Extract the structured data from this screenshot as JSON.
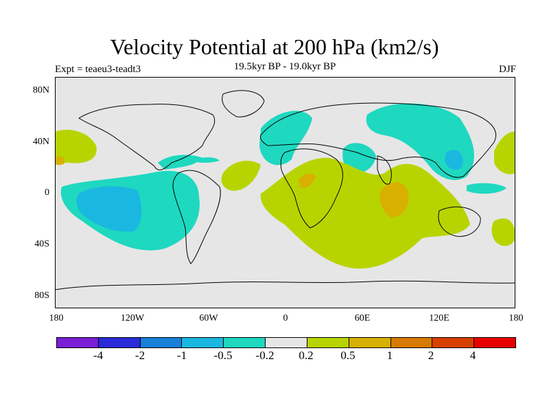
{
  "title": "Velocity Potential at 200 hPa (km2/s)",
  "subtitle": "19.5kyr BP - 19.0kyr BP",
  "experiment": "Expt = teaeu3-teadt3",
  "season": "DJF",
  "lat_labels": [
    "80N",
    "40N",
    "0",
    "40S",
    "80S"
  ],
  "lon_labels": [
    "180",
    "120W",
    "60W",
    "0",
    "60E",
    "120E",
    "180"
  ],
  "colorbar": {
    "colors": [
      "#7a1fd6",
      "#2a2ad8",
      "#1a7fd8",
      "#1ab8e0",
      "#1ed8c0",
      "#e6e6e6",
      "#b8d400",
      "#d8b000",
      "#d87a00",
      "#d84000",
      "#e80000"
    ],
    "labels": [
      "-4",
      "-2",
      "-1",
      "-0.5",
      "-0.2",
      "0.2",
      "0.5",
      "1",
      "2",
      "4"
    ]
  },
  "fill_colors": {
    "background": "#e6e6e6",
    "neg_light": "#1ed8c0",
    "neg_mid": "#1ab8e0",
    "pos_light": "#b8d400",
    "pos_mid": "#d8b000"
  }
}
